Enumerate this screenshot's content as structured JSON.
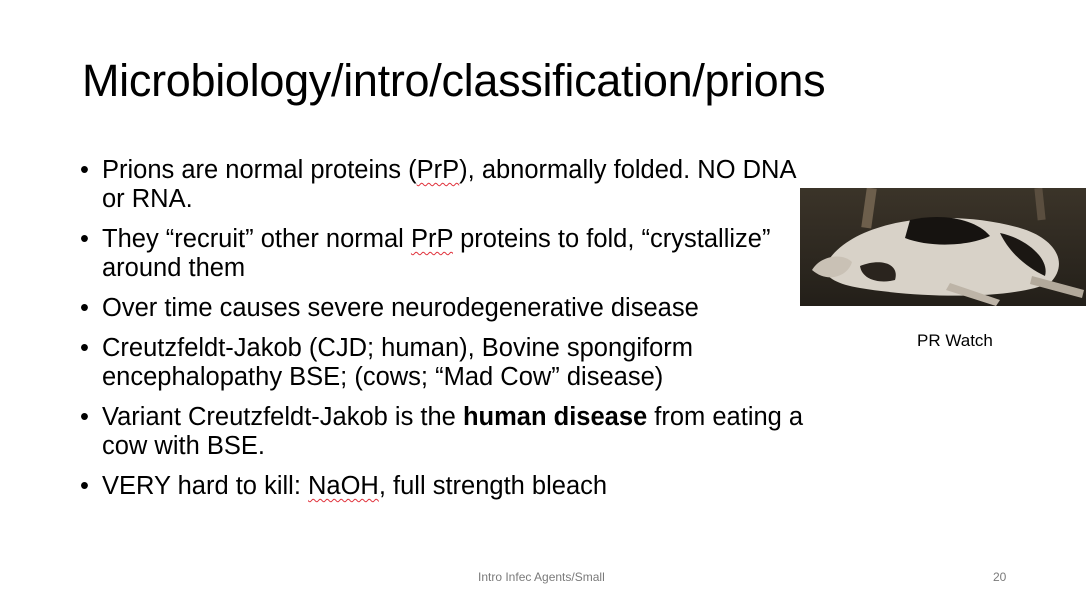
{
  "slide": {
    "title": "Microbiology/intro/classification/prions",
    "bullets": [
      {
        "before": "Prions are normal proteins (",
        "mark": "PrP",
        "after": "), abnormally folded. NO DNA or RNA."
      },
      {
        "before": "They “recruit” other normal ",
        "mark": "PrP",
        "after": " proteins to fold, “crystallize” around them"
      },
      {
        "text": "Over time causes severe neurodegenerative disease"
      },
      {
        "text": "Creutzfeldt-Jakob (CJD; human), Bovine spongiform encephalopathy BSE; (cows; “Mad Cow” disease)"
      },
      {
        "before": "Variant Creutzfeldt-Jakob is the ",
        "bold": "human disease",
        "after": " from eating a cow with BSE."
      },
      {
        "before": "VERY hard to kill: ",
        "mark": "NaOH",
        "after": ", full strength bleach"
      }
    ],
    "image_caption": "PR Watch",
    "footer_text": "Intro Infec Agents/Small",
    "page_number": "20"
  }
}
